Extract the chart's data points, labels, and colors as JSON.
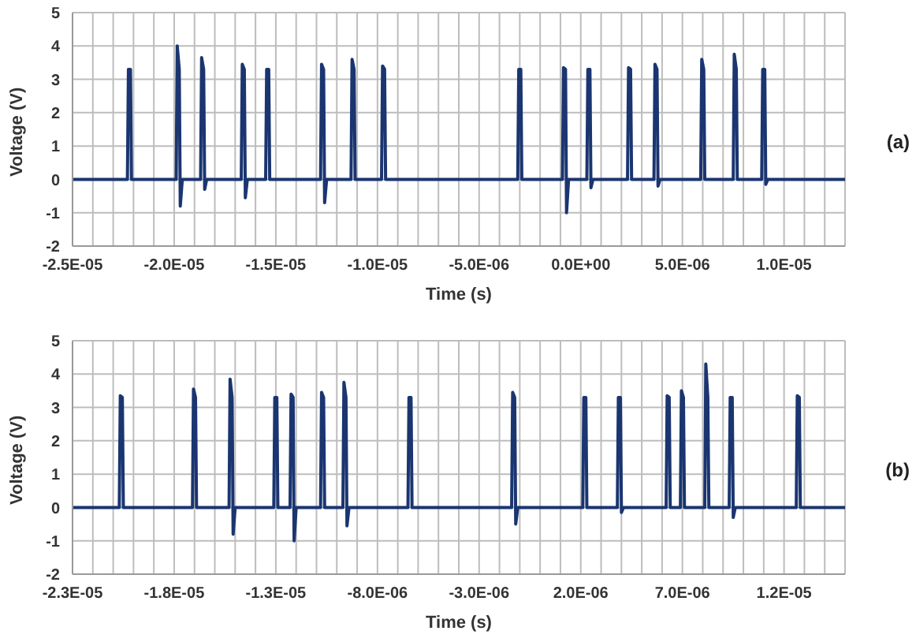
{
  "chart_data": [
    {
      "type": "line",
      "xlabel": "Time (s)",
      "ylabel": "Voltage (V)",
      "annotations": [
        "(a)"
      ],
      "grid": true,
      "legend": false,
      "marker": "none",
      "line_style": "solid",
      "xlim": [
        -2.5e-05,
        1.3e-05
      ],
      "ylim": [
        -2,
        5
      ],
      "yticks": [
        -2,
        -1,
        0,
        1,
        2,
        3,
        4,
        5
      ],
      "xticks": [
        {
          "value": -2.5e-05,
          "label": "-2.5E-05"
        },
        {
          "value": -2.4e-05,
          "label": null
        },
        {
          "value": -2.3e-05,
          "label": null
        },
        {
          "value": -2.2e-05,
          "label": null
        },
        {
          "value": -2.1e-05,
          "label": null
        },
        {
          "value": -2e-05,
          "label": "-2.0E-05"
        },
        {
          "value": -1.9e-05,
          "label": null
        },
        {
          "value": -1.8e-05,
          "label": null
        },
        {
          "value": -1.7e-05,
          "label": null
        },
        {
          "value": -1.6e-05,
          "label": null
        },
        {
          "value": -1.5e-05,
          "label": "-1.5E-05"
        },
        {
          "value": -1.4e-05,
          "label": null
        },
        {
          "value": -1.3e-05,
          "label": null
        },
        {
          "value": -1.2e-05,
          "label": null
        },
        {
          "value": -1.1e-05,
          "label": null
        },
        {
          "value": -1e-05,
          "label": "-1.0E-05"
        },
        {
          "value": -9e-06,
          "label": null
        },
        {
          "value": -8e-06,
          "label": null
        },
        {
          "value": -7e-06,
          "label": null
        },
        {
          "value": -6e-06,
          "label": null
        },
        {
          "value": -5e-06,
          "label": "-5.0E-06"
        },
        {
          "value": -4e-06,
          "label": null
        },
        {
          "value": -3e-06,
          "label": null
        },
        {
          "value": -2e-06,
          "label": null
        },
        {
          "value": -1e-06,
          "label": null
        },
        {
          "value": 0,
          "label": "0.0E+00"
        },
        {
          "value": 1e-06,
          "label": null
        },
        {
          "value": 2e-06,
          "label": null
        },
        {
          "value": 3e-06,
          "label": null
        },
        {
          "value": 4e-06,
          "label": null
        },
        {
          "value": 5e-06,
          "label": "5.0E-06"
        },
        {
          "value": 6e-06,
          "label": null
        },
        {
          "value": 7e-06,
          "label": null
        },
        {
          "value": 8e-06,
          "label": null
        },
        {
          "value": 9e-06,
          "label": null
        },
        {
          "value": 1e-05,
          "label": "1.0E-05"
        },
        {
          "value": 1.1e-05,
          "label": null
        },
        {
          "value": 1.2e-05,
          "label": null
        }
      ],
      "series": [
        {
          "color": "#1a3570",
          "x": [
            -2.5e-05,
            -2.23e-05,
            -2.225e-05,
            -2.215e-05,
            -2.21e-05,
            -2.2e-05,
            -1.99e-05,
            -1.985e-05,
            -1.975e-05,
            -1.97e-05,
            -1.96e-05,
            -1.87e-05,
            -1.865e-05,
            -1.855e-05,
            -1.85e-05,
            -1.84e-05,
            -1.67e-05,
            -1.665e-05,
            -1.655e-05,
            -1.65e-05,
            -1.64e-05,
            -1.55e-05,
            -1.545e-05,
            -1.535e-05,
            -1.53e-05,
            -1.52e-05,
            -1.28e-05,
            -1.275e-05,
            -1.265e-05,
            -1.26e-05,
            -1.25e-05,
            -1.13e-05,
            -1.125e-05,
            -1.115e-05,
            -1.11e-05,
            -1.1e-05,
            -9.8e-06,
            -9.75e-06,
            -9.65e-06,
            -9.6e-06,
            -9.5e-06,
            -3.1e-06,
            -3.05e-06,
            -2.95e-06,
            -2.9e-06,
            -2.8e-06,
            -9e-07,
            -8.5e-07,
            -7.5e-07,
            -7e-07,
            -6e-07,
            3e-07,
            3.5e-07,
            4.5e-07,
            5e-07,
            6e-07,
            2.3e-06,
            2.35e-06,
            2.45e-06,
            2.5e-06,
            2.6e-06,
            3.6e-06,
            3.65e-06,
            3.75e-06,
            3.8e-06,
            3.9e-06,
            5.9e-06,
            5.95e-06,
            6.05e-06,
            6.1e-06,
            6.2e-06,
            7.5e-06,
            7.55e-06,
            7.65e-06,
            7.7e-06,
            7.8e-06,
            8.9e-06,
            8.95e-06,
            9.05e-06,
            9.1e-06,
            9.2e-06,
            1.3e-05
          ],
          "values": [
            0,
            0,
            3.3,
            3.3,
            0,
            0,
            0,
            4.0,
            3.3,
            -0.8,
            0,
            0,
            3.65,
            3.3,
            -0.3,
            0,
            0,
            3.45,
            3.3,
            -0.55,
            0,
            0,
            3.3,
            3.3,
            0,
            0,
            0,
            3.45,
            3.3,
            -0.7,
            0,
            0,
            3.6,
            3.3,
            0,
            0,
            0,
            3.4,
            3.3,
            0,
            0,
            0,
            3.3,
            3.3,
            0,
            0,
            0,
            3.35,
            3.3,
            -1.0,
            0,
            0,
            3.3,
            3.3,
            -0.25,
            0,
            0,
            3.35,
            3.3,
            0,
            0,
            0,
            3.45,
            3.3,
            -0.2,
            0,
            0,
            3.6,
            3.3,
            0,
            0,
            0,
            3.75,
            3.3,
            0,
            0,
            0,
            3.3,
            3.3,
            -0.15,
            0,
            0
          ]
        }
      ]
    },
    {
      "type": "line",
      "xlabel": "Time (s)",
      "ylabel": "Voltage (V)",
      "annotations": [
        "(b)"
      ],
      "grid": true,
      "legend": false,
      "marker": "none",
      "line_style": "solid",
      "xlim": [
        -2.3e-05,
        1.5e-05
      ],
      "ylim": [
        -2,
        5
      ],
      "yticks": [
        -2,
        -1,
        0,
        1,
        2,
        3,
        4,
        5
      ],
      "xticks": [
        {
          "value": -2.3e-05,
          "label": "-2.3E-05"
        },
        {
          "value": -2.2e-05,
          "label": null
        },
        {
          "value": -2.1e-05,
          "label": null
        },
        {
          "value": -2e-05,
          "label": null
        },
        {
          "value": -1.9e-05,
          "label": null
        },
        {
          "value": -1.8e-05,
          "label": "-1.8E-05"
        },
        {
          "value": -1.7e-05,
          "label": null
        },
        {
          "value": -1.6e-05,
          "label": null
        },
        {
          "value": -1.5e-05,
          "label": null
        },
        {
          "value": -1.4e-05,
          "label": null
        },
        {
          "value": -1.3e-05,
          "label": "-1.3E-05"
        },
        {
          "value": -1.2e-05,
          "label": null
        },
        {
          "value": -1.1e-05,
          "label": null
        },
        {
          "value": -1e-05,
          "label": null
        },
        {
          "value": -9e-06,
          "label": null
        },
        {
          "value": -8e-06,
          "label": "-8.0E-06"
        },
        {
          "value": -7e-06,
          "label": null
        },
        {
          "value": -6e-06,
          "label": null
        },
        {
          "value": -5e-06,
          "label": null
        },
        {
          "value": -4e-06,
          "label": null
        },
        {
          "value": -3e-06,
          "label": "-3.0E-06"
        },
        {
          "value": -2e-06,
          "label": null
        },
        {
          "value": -1e-06,
          "label": null
        },
        {
          "value": 0,
          "label": null
        },
        {
          "value": 1e-06,
          "label": null
        },
        {
          "value": 2e-06,
          "label": "2.0E-06"
        },
        {
          "value": 3e-06,
          "label": null
        },
        {
          "value": 4e-06,
          "label": null
        },
        {
          "value": 5e-06,
          "label": null
        },
        {
          "value": 6e-06,
          "label": null
        },
        {
          "value": 7e-06,
          "label": "7.0E-06"
        },
        {
          "value": 8e-06,
          "label": null
        },
        {
          "value": 9e-06,
          "label": null
        },
        {
          "value": 1e-05,
          "label": null
        },
        {
          "value": 1.1e-05,
          "label": null
        },
        {
          "value": 1.2e-05,
          "label": "1.2E-05"
        },
        {
          "value": 1.3e-05,
          "label": null
        },
        {
          "value": 1.4e-05,
          "label": null
        }
      ],
      "series": [
        {
          "color": "#1a3570",
          "x": [
            -2.3e-05,
            -2.07e-05,
            -2.065e-05,
            -2.055e-05,
            -2.05e-05,
            -2.04e-05,
            -1.71e-05,
            -1.705e-05,
            -1.695e-05,
            -1.69e-05,
            -1.68e-05,
            -1.53e-05,
            -1.525e-05,
            -1.515e-05,
            -1.51e-05,
            -1.5e-05,
            -1.31e-05,
            -1.305e-05,
            -1.295e-05,
            -1.29e-05,
            -1.28e-05,
            -1.23e-05,
            -1.225e-05,
            -1.215e-05,
            -1.21e-05,
            -1.2e-05,
            -1.08e-05,
            -1.075e-05,
            -1.065e-05,
            -1.06e-05,
            -1.05e-05,
            -9.7e-06,
            -9.65e-06,
            -9.55e-06,
            -9.5e-06,
            -9.4e-06,
            -6.5e-06,
            -6.45e-06,
            -6.35e-06,
            -6.3e-06,
            -6.2e-06,
            -1.4e-06,
            -1.35e-06,
            -1.25e-06,
            -1.2e-06,
            -1.1e-06,
            2.1e-06,
            2.15e-06,
            2.25e-06,
            2.3e-06,
            2.4e-06,
            3.8e-06,
            3.85e-06,
            3.95e-06,
            4e-06,
            4.1e-06,
            6.2e-06,
            6.25e-06,
            6.35e-06,
            6.4e-06,
            6.5e-06,
            6.9e-06,
            6.95e-06,
            7.05e-06,
            7.1e-06,
            7.2e-06,
            8.1e-06,
            8.15e-06,
            8.25e-06,
            8.3e-06,
            8.4e-06,
            9.3e-06,
            9.35e-06,
            9.45e-06,
            9.5e-06,
            9.6e-06,
            1.26e-05,
            1.265e-05,
            1.275e-05,
            1.28e-05,
            1.29e-05,
            1.5e-05
          ],
          "values": [
            0,
            0,
            3.35,
            3.3,
            0,
            0,
            0,
            3.55,
            3.3,
            0,
            0,
            0,
            3.85,
            3.3,
            -0.8,
            0,
            0,
            3.3,
            3.3,
            0,
            0,
            0,
            3.4,
            3.3,
            -1.0,
            0,
            0,
            3.45,
            3.3,
            0,
            0,
            0,
            3.75,
            3.3,
            -0.55,
            0,
            0,
            3.3,
            3.3,
            0,
            0,
            0,
            3.45,
            3.3,
            -0.5,
            0,
            0,
            3.3,
            3.3,
            0,
            0,
            0,
            3.3,
            3.3,
            -0.15,
            0,
            0,
            3.35,
            3.3,
            0,
            0,
            0,
            3.5,
            3.3,
            0,
            0,
            0,
            4.3,
            3.3,
            0,
            0,
            0,
            3.3,
            3.3,
            -0.3,
            0,
            0,
            3.35,
            3.3,
            0,
            0,
            0
          ]
        }
      ]
    }
  ]
}
